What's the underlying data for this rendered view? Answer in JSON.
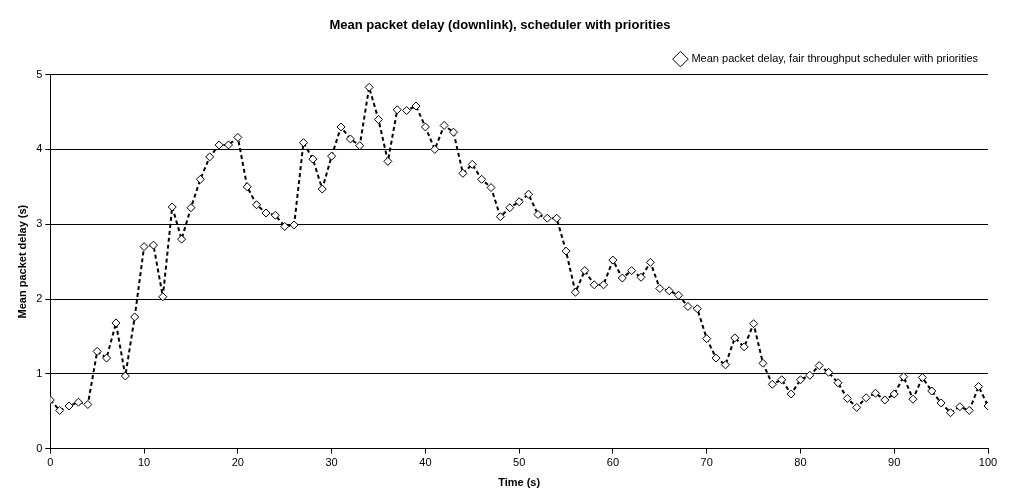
{
  "chart_data": {
    "type": "line",
    "title": "Mean packet delay (downlink), scheduler with priorities",
    "xlabel": "Time (s)",
    "ylabel": "Mean packet delay (s)",
    "x": [
      0,
      1,
      2,
      3,
      4,
      5,
      6,
      7,
      8,
      9,
      10,
      11,
      12,
      13,
      14,
      15,
      16,
      17,
      18,
      19,
      20,
      21,
      22,
      23,
      24,
      25,
      26,
      27,
      28,
      29,
      30,
      31,
      32,
      33,
      34,
      35,
      36,
      37,
      38,
      39,
      40,
      41,
      42,
      43,
      44,
      45,
      46,
      47,
      48,
      49,
      50,
      51,
      52,
      53,
      54,
      55,
      56,
      57,
      58,
      59,
      60,
      61,
      62,
      63,
      64,
      65,
      66,
      67,
      68,
      69,
      70,
      71,
      72,
      73,
      74,
      75,
      76,
      77,
      78,
      79,
      80,
      81,
      82,
      83,
      84,
      85,
      86,
      87,
      88,
      89,
      90,
      91,
      92,
      93,
      94,
      95,
      96,
      97,
      98,
      99,
      100
    ],
    "series": [
      {
        "name": "Mean packet delay, fair throughput scheduler with priorities",
        "color": "#000000",
        "values": [
          0.65,
          0.51,
          0.57,
          0.62,
          0.59,
          1.3,
          1.21,
          1.68,
          0.97,
          1.76,
          2.7,
          2.72,
          2.03,
          3.23,
          2.8,
          3.22,
          3.6,
          3.9,
          4.06,
          4.06,
          4.16,
          3.5,
          3.26,
          3.15,
          3.12,
          2.97,
          2.99,
          4.09,
          3.87,
          3.47,
          3.91,
          4.3,
          4.14,
          4.05,
          4.83,
          4.4,
          3.84,
          4.53,
          4.52,
          4.58,
          4.3,
          4.0,
          4.32,
          4.23,
          3.68,
          3.8,
          3.6,
          3.49,
          3.1,
          3.22,
          3.3,
          3.4,
          3.13,
          3.08,
          3.08,
          2.64,
          2.09,
          2.38,
          2.19,
          2.19,
          2.52,
          2.28,
          2.38,
          2.29,
          2.49,
          2.14,
          2.11,
          2.05,
          1.9,
          1.87,
          1.47,
          1.21,
          1.12,
          1.48,
          1.36,
          1.67,
          1.14,
          0.86,
          0.92,
          0.73,
          0.92,
          0.98,
          1.11,
          1.02,
          0.88,
          0.67,
          0.55,
          0.68,
          0.74,
          0.65,
          0.73,
          0.96,
          0.66,
          0.95,
          0.77,
          0.61,
          0.48,
          0.56,
          0.51,
          0.83,
          0.57
        ]
      }
    ],
    "xlim": [
      0,
      100
    ],
    "xticks": [
      0,
      10,
      20,
      30,
      40,
      50,
      60,
      70,
      80,
      90,
      100
    ],
    "ylim": [
      0,
      5
    ],
    "yticks": [
      0,
      1,
      2,
      3,
      4,
      5
    ],
    "grid": "y",
    "legend": "top right",
    "marker": "diamond",
    "line_style": "dashed"
  }
}
